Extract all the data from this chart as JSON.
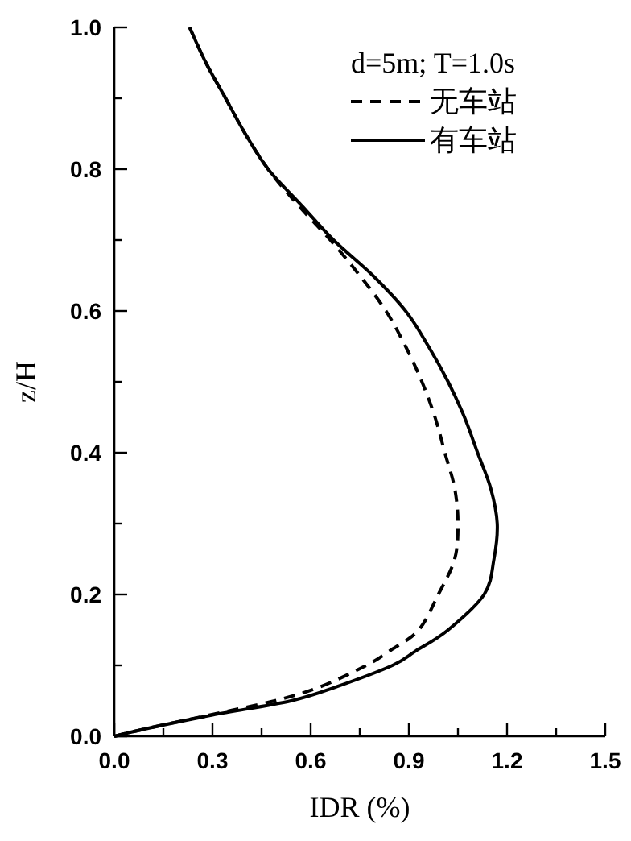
{
  "chart_data": {
    "type": "line",
    "xlabel": "IDR (%)",
    "ylabel": "z/H",
    "legend_title": "d=5m; T=1.0s",
    "legend": "top right",
    "xlim": [
      0,
      1.5
    ],
    "ylim": [
      0,
      1
    ],
    "xticks": [
      {
        "value": 0,
        "label": "0.0"
      },
      {
        "value": 0.15,
        "label": null
      },
      {
        "value": 0.3,
        "label": "0.3"
      },
      {
        "value": 0.45,
        "label": null
      },
      {
        "value": 0.6,
        "label": "0.6"
      },
      {
        "value": 0.75,
        "label": null
      },
      {
        "value": 0.9,
        "label": "0.9"
      },
      {
        "value": 1.05,
        "label": null
      },
      {
        "value": 1.2,
        "label": "1.2"
      },
      {
        "value": 1.35,
        "label": null
      },
      {
        "value": 1.5,
        "label": "1.5"
      }
    ],
    "yticks": [
      {
        "value": 0,
        "label": "0.0"
      },
      {
        "value": 0.1,
        "label": null
      },
      {
        "value": 0.2,
        "label": "0.2"
      },
      {
        "value": 0.3,
        "label": null
      },
      {
        "value": 0.4,
        "label": "0.4"
      },
      {
        "value": 0.5,
        "label": null
      },
      {
        "value": 0.6,
        "label": "0.6"
      },
      {
        "value": 0.7,
        "label": null
      },
      {
        "value": 0.8,
        "label": "0.8"
      },
      {
        "value": 0.9,
        "label": null
      },
      {
        "value": 1.0,
        "label": "1.0"
      }
    ],
    "series": [
      {
        "name": "无车站",
        "color": "#000000",
        "line_style": "dashed",
        "x": [
          0,
          0.09,
          0.29,
          0.49,
          0.63,
          0.77,
          0.84,
          0.93,
          0.99,
          1.04,
          1.05,
          1.04,
          1.01,
          0.98,
          0.94,
          0.89,
          0.83,
          0.75,
          0.66,
          0.56,
          0.47,
          0.4,
          0.34,
          0.28,
          0.23
        ],
        "values": [
          0,
          0.01,
          0.03,
          0.05,
          0.07,
          0.1,
          0.12,
          0.15,
          0.2,
          0.25,
          0.3,
          0.35,
          0.4,
          0.45,
          0.5,
          0.55,
          0.6,
          0.65,
          0.7,
          0.75,
          0.8,
          0.85,
          0.9,
          0.95,
          1.0
        ]
      },
      {
        "name": "有车站",
        "color": "#000000",
        "line_style": "solid",
        "x": [
          0,
          0.09,
          0.3,
          0.54,
          0.68,
          0.85,
          0.92,
          1.02,
          1.13,
          1.16,
          1.17,
          1.15,
          1.11,
          1.07,
          1.02,
          0.96,
          0.89,
          0.79,
          0.67,
          0.57,
          0.47,
          0.4,
          0.34,
          0.28,
          0.23
        ],
        "values": [
          0,
          0.01,
          0.03,
          0.05,
          0.07,
          0.1,
          0.12,
          0.15,
          0.2,
          0.25,
          0.3,
          0.35,
          0.4,
          0.45,
          0.5,
          0.55,
          0.6,
          0.65,
          0.7,
          0.75,
          0.8,
          0.85,
          0.9,
          0.95,
          1.0
        ]
      }
    ]
  }
}
